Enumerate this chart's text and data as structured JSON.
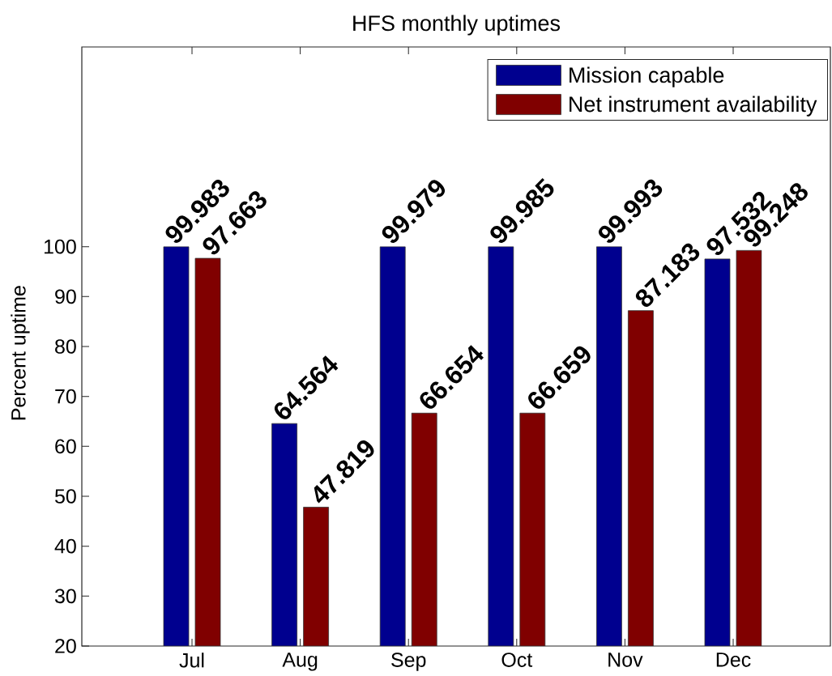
{
  "chart_data": {
    "type": "bar",
    "title": "HFS monthly uptimes",
    "ylabel": "Percent uptime",
    "categories": [
      "Jul",
      "Aug",
      "Sep",
      "Oct",
      "Nov",
      "Dec"
    ],
    "series": [
      {
        "name": "Mission capable",
        "color": "#00008f",
        "values": [
          99.983,
          64.564,
          99.979,
          99.985,
          99.993,
          97.532
        ]
      },
      {
        "name": "Net instrument availability",
        "color": "#800000",
        "values": [
          97.663,
          47.819,
          66.654,
          66.659,
          87.183,
          99.248
        ]
      }
    ],
    "ylim": [
      20,
      140
    ],
    "yticks": [
      20,
      30,
      40,
      50,
      60,
      70,
      80,
      90,
      100
    ],
    "legend": "top right",
    "data_labels": true
  }
}
